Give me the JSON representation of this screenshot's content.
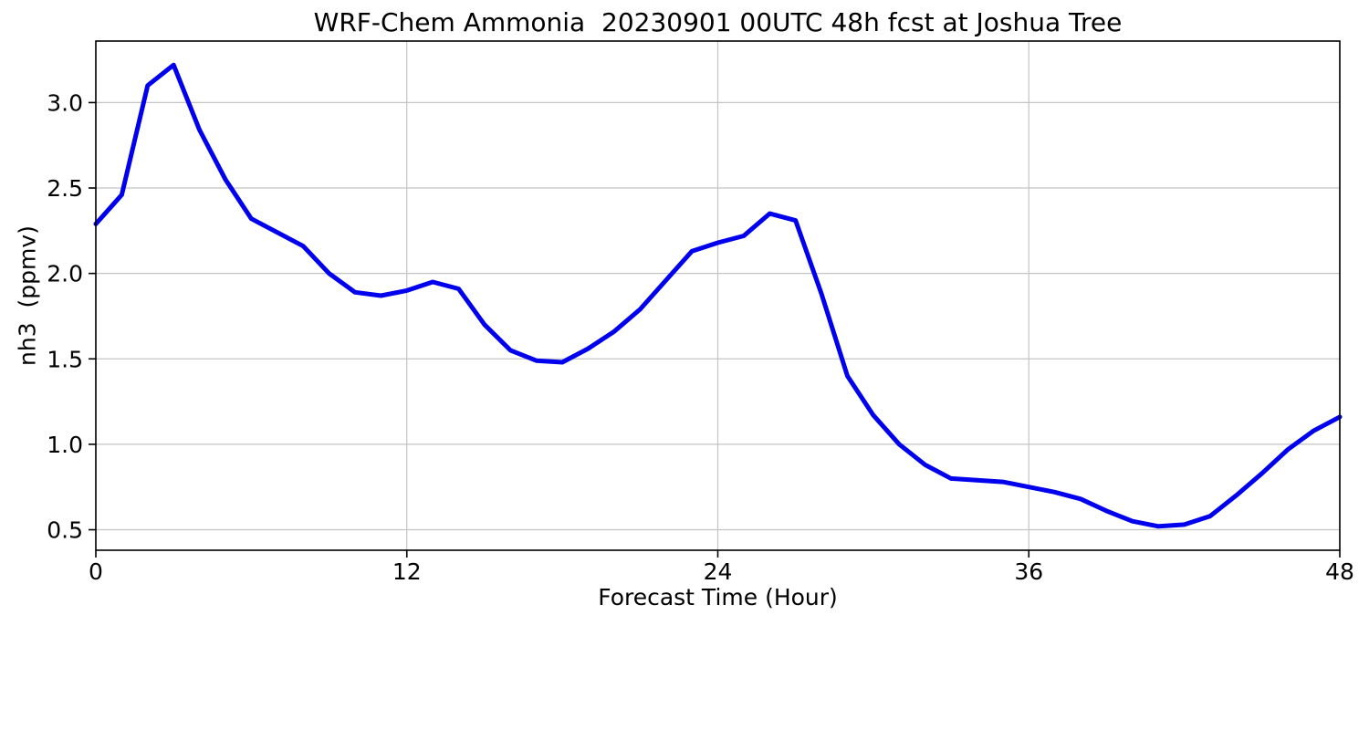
{
  "chart_data": {
    "type": "line",
    "title": "WRF-Chem Ammonia  20230901 00UTC 48h fcst at Joshua Tree",
    "xlabel": "Forecast Time (Hour)",
    "ylabel": "nh3  (ppmv)",
    "x": [
      0,
      1,
      2,
      3,
      4,
      5,
      6,
      7,
      8,
      9,
      10,
      11,
      12,
      13,
      14,
      15,
      16,
      17,
      18,
      19,
      20,
      21,
      22,
      23,
      24,
      25,
      26,
      27,
      28,
      29,
      30,
      31,
      32,
      33,
      34,
      35,
      36,
      37,
      38,
      39,
      40,
      41,
      42,
      43,
      44,
      45,
      46,
      47,
      48
    ],
    "values": [
      2.29,
      2.46,
      3.1,
      3.22,
      2.84,
      2.55,
      2.32,
      2.24,
      2.16,
      2.0,
      1.89,
      1.87,
      1.9,
      1.95,
      1.91,
      1.7,
      1.55,
      1.49,
      1.48,
      1.56,
      1.66,
      1.79,
      1.96,
      2.13,
      2.18,
      2.22,
      2.35,
      2.31,
      1.88,
      1.4,
      1.17,
      1.0,
      0.88,
      0.8,
      0.79,
      0.78,
      0.75,
      0.72,
      0.68,
      0.61,
      0.55,
      0.52,
      0.53,
      0.58,
      0.7,
      0.83,
      0.97,
      1.08,
      1.16
    ],
    "xlim": [
      0,
      48
    ],
    "ylim": [
      0.38,
      3.36
    ],
    "xticks": [
      {
        "v": 0,
        "label": "0"
      },
      {
        "v": 12,
        "label": "12"
      },
      {
        "v": 24,
        "label": "24"
      },
      {
        "v": 36,
        "label": "36"
      },
      {
        "v": 48,
        "label": "48"
      }
    ],
    "yticks": [
      {
        "v": 0.5,
        "label": "0.5"
      },
      {
        "v": 1.0,
        "label": "1.0"
      },
      {
        "v": 1.5,
        "label": "1.5"
      },
      {
        "v": 2.0,
        "label": "2.0"
      },
      {
        "v": 2.5,
        "label": "2.5"
      },
      {
        "v": 3.0,
        "label": "3.0"
      }
    ],
    "grid": true,
    "legend": "none",
    "line_color": "#0000ee",
    "line_width": 5,
    "grid_color": "#c4c4c4",
    "axis_color": "#000000",
    "background": "#ffffff"
  }
}
